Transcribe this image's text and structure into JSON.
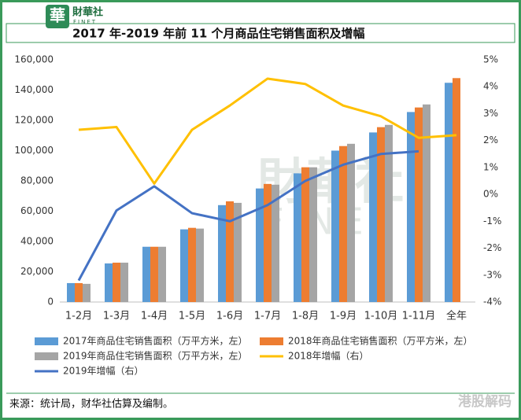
{
  "header": {
    "logo_text": "財華社",
    "logo_sub": "FINET"
  },
  "chart_data": {
    "type": "bar",
    "title": "2017 年-2019 年前 11 个月商品住宅销售面积及增幅",
    "categories": [
      "1-2月",
      "1-3月",
      "1-4月",
      "1-5月",
      "1-6月",
      "1-7月",
      "1-8月",
      "1-9月",
      "1-10月",
      "1-11月",
      "全年"
    ],
    "series": [
      {
        "name": "2017年商品住宅销售面积（万平方米，左）",
        "color": "#5b9bd5",
        "type": "bar",
        "values": [
          12500,
          25500,
          36500,
          48000,
          64000,
          75000,
          85000,
          100000,
          112000,
          125500,
          144800
        ]
      },
      {
        "name": "2018年商品住宅销售面积（万平方米，左）",
        "color": "#ed7d31",
        "type": "bar",
        "values": [
          12500,
          26000,
          36500,
          49000,
          66500,
          78000,
          89000,
          103000,
          115500,
          128500,
          147900
        ]
      },
      {
        "name": "2019年商品住宅销售面积（万平方米，左）",
        "color": "#a5a5a5",
        "type": "bar",
        "values": [
          12000,
          26000,
          36500,
          48500,
          65500,
          77500,
          89000,
          104500,
          117000,
          130500,
          null
        ]
      },
      {
        "name": "2018年增幅（右）",
        "color": "#ffc000",
        "type": "line",
        "axis": "y2",
        "values": [
          2.4,
          2.5,
          0.4,
          2.4,
          3.3,
          4.3,
          4.1,
          3.3,
          2.9,
          2.1,
          2.2
        ]
      },
      {
        "name": "2019年增幅（右）",
        "color": "#4472c4",
        "type": "line",
        "axis": "y2",
        "values": [
          -3.2,
          -0.6,
          0.3,
          -0.7,
          -1.0,
          -0.4,
          0.5,
          1.1,
          1.5,
          1.6,
          null
        ]
      }
    ],
    "ylim": [
      0,
      160000
    ],
    "yticks": [
      0,
      {
        "value": 20000,
        "label": "20,000"
      },
      {
        "value": 40000,
        "label": "40,000"
      },
      {
        "value": 60000,
        "label": "60,000"
      },
      {
        "value": 80000,
        "label": "80,000"
      },
      {
        "value": 100000,
        "label": "100,000"
      },
      {
        "value": 120000,
        "label": "120,000"
      },
      {
        "value": 140000,
        "label": "140,000"
      },
      {
        "value": 160000,
        "label": "160,000"
      }
    ],
    "y2lim": [
      -4,
      5
    ],
    "y2ticks": [
      {
        "value": -4,
        "label": "-4%"
      },
      {
        "value": -3,
        "label": "-3%"
      },
      {
        "value": -2,
        "label": "-2%"
      },
      {
        "value": -1,
        "label": "-1%"
      },
      {
        "value": 0,
        "label": "0%"
      },
      {
        "value": 1,
        "label": "1%"
      },
      {
        "value": 2,
        "label": "2%"
      },
      {
        "value": 3,
        "label": "3%"
      },
      {
        "value": 4,
        "label": "4%"
      },
      {
        "value": 5,
        "label": "5%"
      }
    ],
    "grid": false
  },
  "footer": {
    "source": "来源：统计局，财华社估算及编制。",
    "watermark": "港股解码"
  }
}
